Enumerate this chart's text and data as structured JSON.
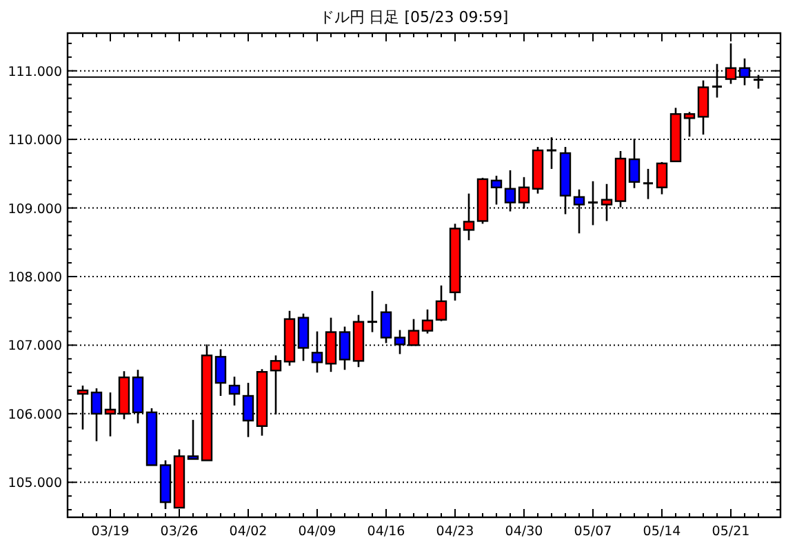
{
  "chart_data": {
    "type": "candlestick",
    "title": "ドル円 日足 [05/23 09:59]",
    "categories": [
      null,
      null,
      "03/19",
      null,
      null,
      null,
      null,
      "03/26",
      null,
      null,
      null,
      null,
      "04/02",
      null,
      null,
      null,
      null,
      "04/09",
      null,
      null,
      null,
      null,
      "04/16",
      null,
      null,
      null,
      null,
      "04/23",
      null,
      null,
      null,
      null,
      "04/30",
      null,
      null,
      null,
      null,
      "05/07",
      null,
      null,
      null,
      null,
      "05/14",
      null,
      null,
      null,
      null,
      "05/21",
      null,
      null
    ],
    "ohlc": [
      [
        106.29,
        106.41,
        105.77,
        106.34
      ],
      [
        106.31,
        106.37,
        105.6,
        106.0
      ],
      [
        106.0,
        106.31,
        105.67,
        106.06
      ],
      [
        106.0,
        106.62,
        105.92,
        106.53
      ],
      [
        106.53,
        106.64,
        105.86,
        106.02
      ],
      [
        106.02,
        106.08,
        105.25,
        105.25
      ],
      [
        105.25,
        105.32,
        104.61,
        104.71
      ],
      [
        104.63,
        105.48,
        104.63,
        105.38
      ],
      [
        105.38,
        105.91,
        105.34,
        105.34
      ],
      [
        105.32,
        107.01,
        105.32,
        106.85
      ],
      [
        106.83,
        106.94,
        106.26,
        106.45
      ],
      [
        106.41,
        106.54,
        106.12,
        106.29
      ],
      [
        106.26,
        106.45,
        105.66,
        105.9
      ],
      [
        105.82,
        106.65,
        105.68,
        106.61
      ],
      [
        106.63,
        106.85,
        105.99,
        106.77
      ],
      [
        106.76,
        107.5,
        106.7,
        107.38
      ],
      [
        107.4,
        107.46,
        106.77,
        106.96
      ],
      [
        106.89,
        107.2,
        106.6,
        106.75
      ],
      [
        106.73,
        107.4,
        106.61,
        107.19
      ],
      [
        107.19,
        107.27,
        106.64,
        106.79
      ],
      [
        106.77,
        107.44,
        106.68,
        107.34
      ],
      [
        107.34,
        107.79,
        107.19,
        107.34
      ],
      [
        107.48,
        107.6,
        107.03,
        107.11
      ],
      [
        107.11,
        107.22,
        106.87,
        107.01
      ],
      [
        107.0,
        107.38,
        107.0,
        107.21
      ],
      [
        107.21,
        107.52,
        107.17,
        107.36
      ],
      [
        107.37,
        107.87,
        107.35,
        107.64
      ],
      [
        107.77,
        108.77,
        107.65,
        108.7
      ],
      [
        108.68,
        109.21,
        108.53,
        108.8
      ],
      [
        108.81,
        109.44,
        108.77,
        109.42
      ],
      [
        109.4,
        109.47,
        109.05,
        109.3
      ],
      [
        109.28,
        109.55,
        108.95,
        109.08
      ],
      [
        109.08,
        109.45,
        108.99,
        109.3
      ],
      [
        109.28,
        109.89,
        109.21,
        109.84
      ],
      [
        109.84,
        110.03,
        109.57,
        109.84
      ],
      [
        109.8,
        109.89,
        108.91,
        109.18
      ],
      [
        109.16,
        109.27,
        108.63,
        109.05
      ],
      [
        109.08,
        109.39,
        108.75,
        109.08
      ],
      [
        109.05,
        109.35,
        108.81,
        109.12
      ],
      [
        109.1,
        109.83,
        109.01,
        109.72
      ],
      [
        109.71,
        110.01,
        109.29,
        109.38
      ],
      [
        109.36,
        109.57,
        109.13,
        109.36
      ],
      [
        109.3,
        109.67,
        109.2,
        109.65
      ],
      [
        109.68,
        110.46,
        109.68,
        110.37
      ],
      [
        110.31,
        110.4,
        110.04,
        110.37
      ],
      [
        110.33,
        110.86,
        110.07,
        110.76
      ],
      [
        110.77,
        111.1,
        110.61,
        110.77
      ],
      [
        110.88,
        111.4,
        110.81,
        111.04
      ],
      [
        111.04,
        111.18,
        110.79,
        110.91
      ],
      [
        110.87,
        110.94,
        110.74,
        110.87
      ]
    ],
    "colors": [
      "#ff0000",
      "#0000ff",
      "#ff0000",
      "#ff0000",
      "#0000ff",
      "#0000ff",
      "#0000ff",
      "#ff0000",
      "#0000ff",
      "#ff0000",
      "#0000ff",
      "#0000ff",
      "#0000ff",
      "#ff0000",
      "#ff0000",
      "#ff0000",
      "#0000ff",
      "#0000ff",
      "#ff0000",
      "#0000ff",
      "#ff0000",
      "#000000",
      "#0000ff",
      "#0000ff",
      "#ff0000",
      "#ff0000",
      "#ff0000",
      "#ff0000",
      "#ff0000",
      "#ff0000",
      "#0000ff",
      "#0000ff",
      "#ff0000",
      "#ff0000",
      "#000000",
      "#0000ff",
      "#0000ff",
      "#000000",
      "#ff0000",
      "#ff0000",
      "#0000ff",
      "#000000",
      "#ff0000",
      "#ff0000",
      "#ff0000",
      "#ff0000",
      "#000000",
      "#ff0000",
      "#0000ff",
      "#000000"
    ],
    "ylim": [
      104.49,
      111.55
    ],
    "yticks": [
      {
        "value": 104.6,
        "label": null
      },
      {
        "value": 104.8,
        "label": null
      },
      {
        "value": 105,
        "label": "105.000"
      },
      {
        "value": 105.2,
        "label": null
      },
      {
        "value": 105.4,
        "label": null
      },
      {
        "value": 105.6,
        "label": null
      },
      {
        "value": 105.8,
        "label": null
      },
      {
        "value": 106,
        "label": "106.000"
      },
      {
        "value": 106.2,
        "label": null
      },
      {
        "value": 106.4,
        "label": null
      },
      {
        "value": 106.6,
        "label": null
      },
      {
        "value": 106.8,
        "label": null
      },
      {
        "value": 107,
        "label": "107.000"
      },
      {
        "value": 107.2,
        "label": null
      },
      {
        "value": 107.4,
        "label": null
      },
      {
        "value": 107.6,
        "label": null
      },
      {
        "value": 107.8,
        "label": null
      },
      {
        "value": 108,
        "label": "108.000"
      },
      {
        "value": 108.2,
        "label": null
      },
      {
        "value": 108.4,
        "label": null
      },
      {
        "value": 108.6,
        "label": null
      },
      {
        "value": 108.8,
        "label": null
      },
      {
        "value": 109,
        "label": "109.000"
      },
      {
        "value": 109.2,
        "label": null
      },
      {
        "value": 109.4,
        "label": null
      },
      {
        "value": 109.6,
        "label": null
      },
      {
        "value": 109.8,
        "label": null
      },
      {
        "value": 110,
        "label": "110.000"
      },
      {
        "value": 110.2,
        "label": null
      },
      {
        "value": 110.4,
        "label": null
      },
      {
        "value": 110.6,
        "label": null
      },
      {
        "value": 110.8,
        "label": null
      },
      {
        "value": 111,
        "label": "111.000"
      },
      {
        "value": 111.2,
        "label": null
      },
      {
        "value": 111.4,
        "label": null
      }
    ],
    "grid": "y",
    "ref_lines": [
      {
        "axis": "y",
        "value": 110.91,
        "color": "#000000"
      }
    ]
  }
}
